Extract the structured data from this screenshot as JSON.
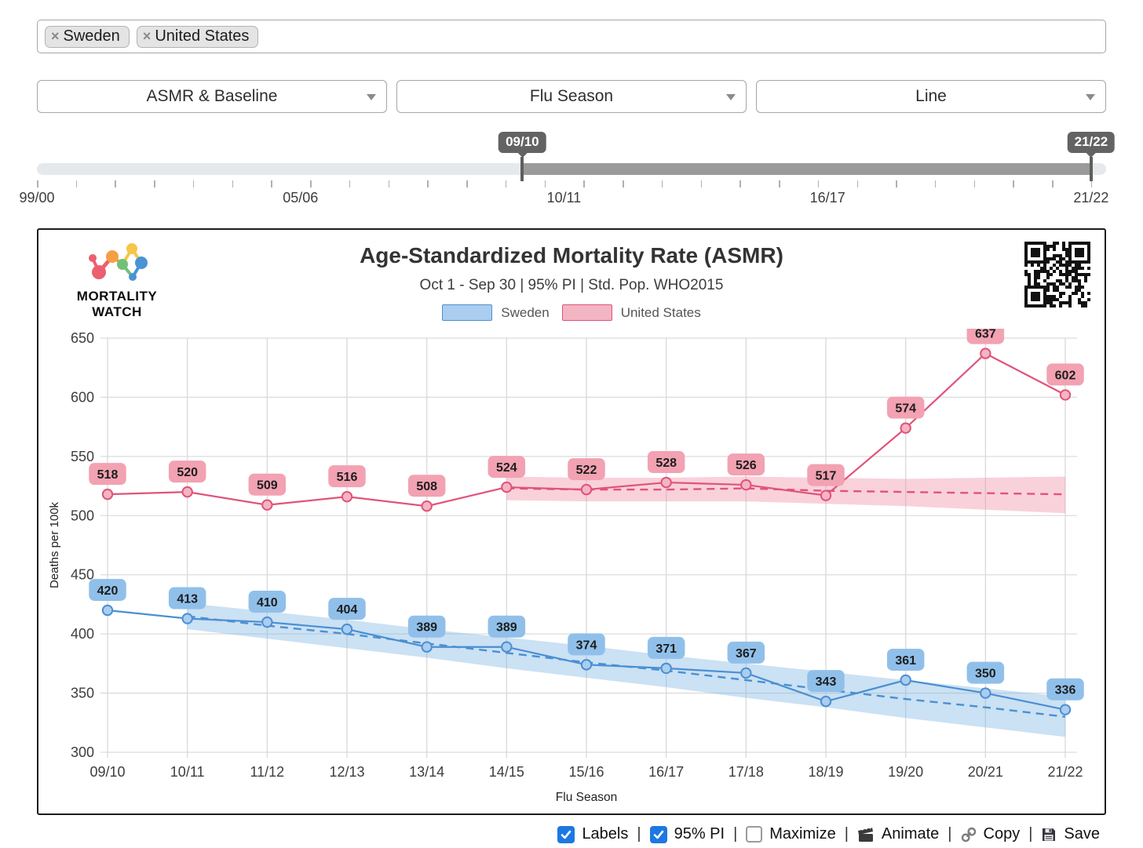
{
  "tags_input": {
    "remove_symbol": "×",
    "tags": [
      {
        "label": "Sweden"
      },
      {
        "label": "United States"
      }
    ]
  },
  "selects": [
    {
      "value": "ASMR & Baseline"
    },
    {
      "value": "Flu Season"
    },
    {
      "value": "Line"
    }
  ],
  "range_slider": {
    "start_label": "09/10",
    "end_label": "21/22",
    "start_pct": 45.4,
    "end_pct": 98.6,
    "tick_labels": [
      "99/00",
      "05/06",
      "10/11",
      "16/17",
      "21/22"
    ],
    "tick_positions_pct": [
      0,
      25,
      50,
      75,
      100
    ]
  },
  "brand": {
    "line1": "MORTALITY",
    "line2": "WATCH"
  },
  "chart": {
    "title": "Age-Standardized Mortality Rate (ASMR)",
    "subtitle": "Oct 1 - Sep 30 | 95% PI | Std. Pop. WHO2015"
  },
  "chart_data": {
    "type": "line",
    "title": "Age-Standardized Mortality Rate (ASMR)",
    "subtitle": "Oct 1 - Sep 30 | 95% PI | Std. Pop. WHO2015",
    "xlabel": "Flu Season",
    "ylabel": "Deaths per 100k",
    "ylim": [
      300,
      650
    ],
    "ytick_step": 50,
    "grid": true,
    "legend_position": "top",
    "categories": [
      "09/10",
      "10/11",
      "11/12",
      "12/13",
      "13/14",
      "14/15",
      "15/16",
      "16/17",
      "17/18",
      "18/19",
      "19/20",
      "20/21",
      "21/22"
    ],
    "series": [
      {
        "name": "Sweden",
        "color": "#4a90d2",
        "marker_fill": "#abcdef",
        "label_bg": "#90c0ea",
        "band_fill": "#7eb3e3",
        "values": [
          420,
          413,
          410,
          404,
          389,
          389,
          374,
          371,
          367,
          343,
          361,
          350,
          336
        ],
        "trend": {
          "start_index": 1,
          "values": [
            415,
            407,
            400,
            392,
            384,
            376,
            369,
            361,
            353,
            345,
            338,
            330
          ]
        },
        "band": {
          "start_index": 1,
          "upper": [
            426,
            419,
            412,
            404,
            397,
            390,
            382,
            375,
            368,
            361,
            354,
            347
          ],
          "lower": [
            404,
            396,
            388,
            380,
            371,
            363,
            355,
            346,
            338,
            329,
            321,
            313
          ]
        }
      },
      {
        "name": "United States",
        "color": "#e0537a",
        "marker_fill": "#f4b5c3",
        "label_bg": "#f2a2b2",
        "band_fill": "#f08ca6",
        "values": [
          518,
          520,
          509,
          516,
          508,
          524,
          522,
          528,
          526,
          517,
          574,
          637,
          602
        ],
        "trend": {
          "start_index": 5,
          "values": [
            523,
            522,
            522,
            523,
            521,
            520,
            519,
            518
          ]
        },
        "band": {
          "start_index": 5,
          "upper": [
            533,
            532,
            532,
            533,
            532,
            531,
            532,
            533
          ],
          "lower": [
            513,
            512,
            512,
            512,
            510,
            508,
            505,
            502
          ]
        }
      }
    ]
  },
  "controls": {
    "labels_checkbox": "Labels",
    "pi_checkbox": "95% PI",
    "maximize_checkbox": "Maximize",
    "animate_button": "Animate",
    "copy_button": "Copy",
    "save_button": "Save",
    "separator": "|"
  },
  "colors": {
    "checkbox_on": "#1d78e2",
    "slider_badge": "#636363",
    "slider_selected": "#9a9a9a",
    "sweden": "#4a90d2",
    "united_states": "#e0537a"
  }
}
